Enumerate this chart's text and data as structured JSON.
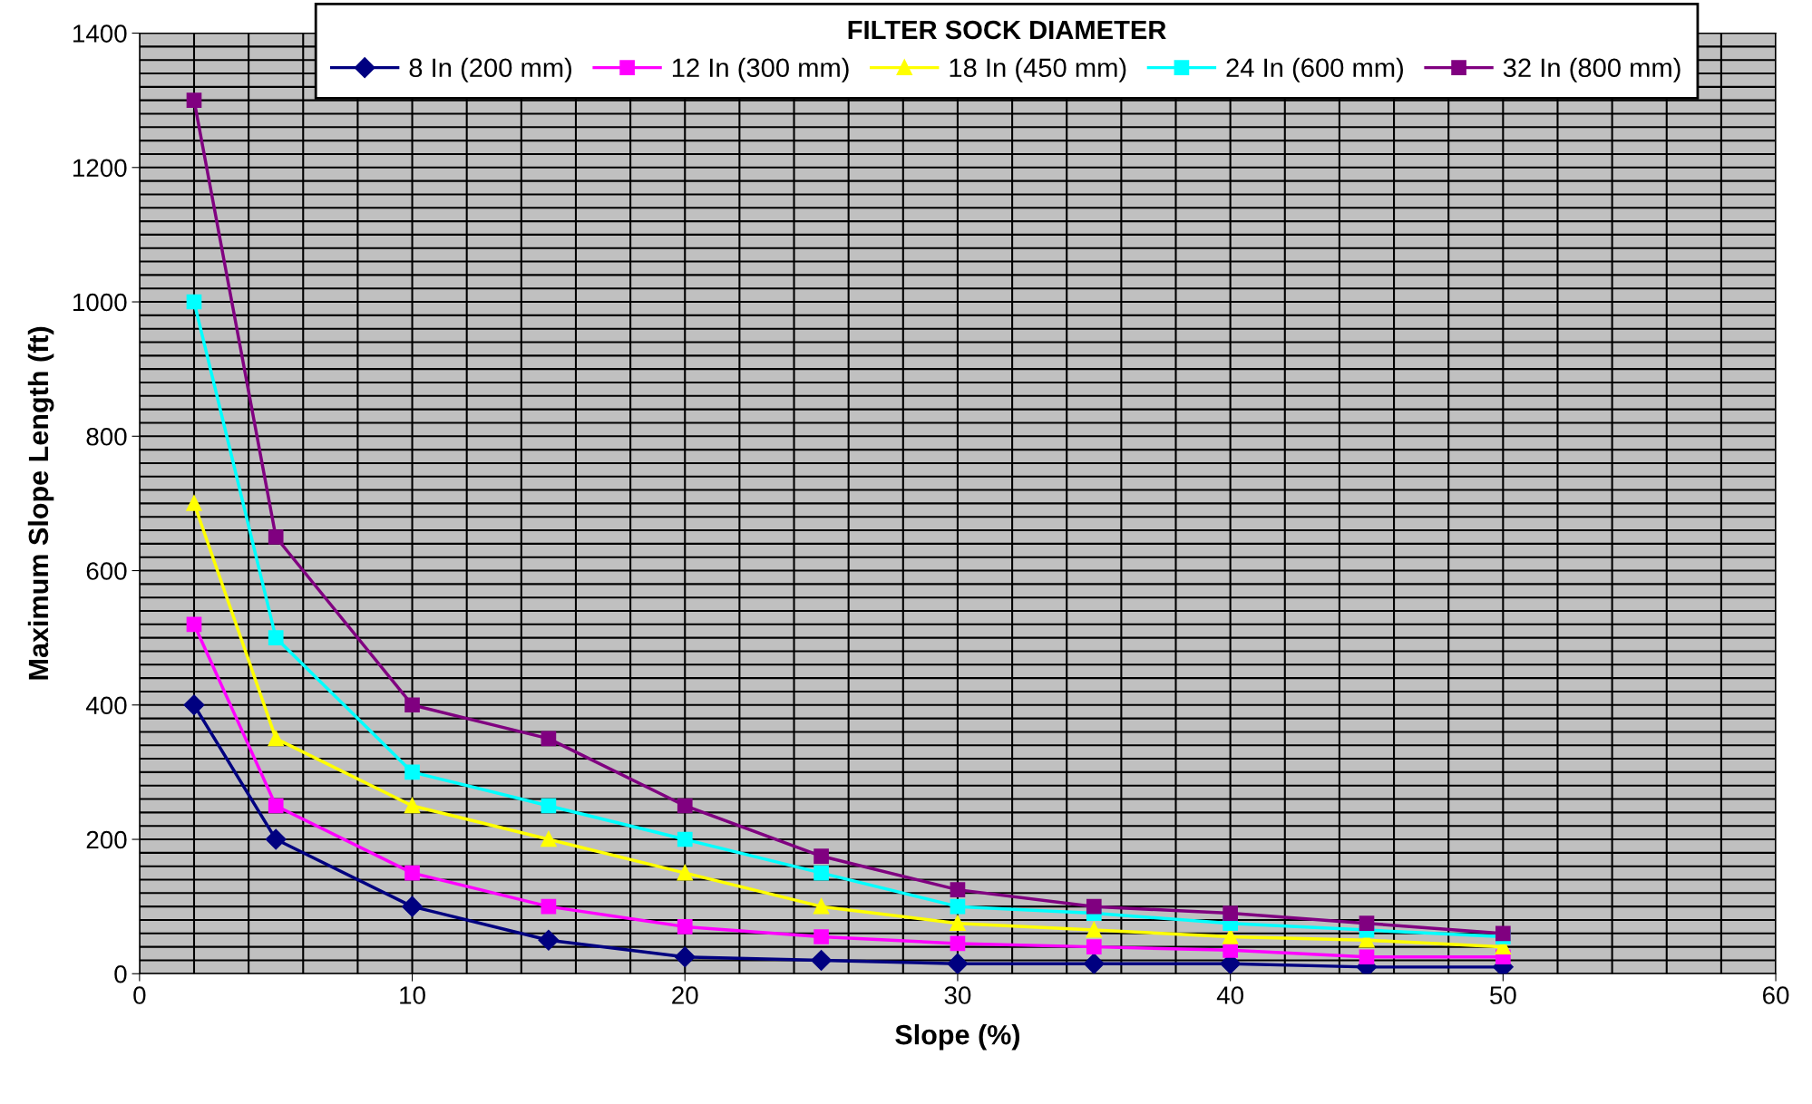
{
  "chart_data": {
    "type": "line",
    "legend_title": "FILTER SOCK DIAMETER",
    "xlabel": "Slope (%)",
    "ylabel": "Maximum Slope Length (ft)",
    "x": [
      2,
      5,
      10,
      15,
      20,
      25,
      30,
      35,
      40,
      45,
      50
    ],
    "series": [
      {
        "name": "8 In (200 mm)",
        "color": "#000080",
        "marker": "diamond",
        "values": [
          400,
          200,
          100,
          50,
          25,
          20,
          15,
          15,
          15,
          10,
          10
        ]
      },
      {
        "name": "12 In (300 mm)",
        "color": "#ff00ff",
        "marker": "square",
        "values": [
          520,
          250,
          150,
          100,
          70,
          55,
          45,
          40,
          35,
          25,
          25
        ]
      },
      {
        "name": "18 In (450 mm)",
        "color": "#ffff00",
        "marker": "triangle",
        "values": [
          700,
          350,
          250,
          200,
          150,
          100,
          75,
          65,
          55,
          50,
          40
        ]
      },
      {
        "name": "24 In (600 mm)",
        "color": "#00ffff",
        "marker": "square",
        "values": [
          1000,
          500,
          300,
          250,
          200,
          150,
          100,
          90,
          75,
          65,
          55
        ]
      },
      {
        "name": "32 In (800 mm)",
        "color": "#800080",
        "marker": "square",
        "values": [
          1300,
          650,
          400,
          350,
          250,
          175,
          125,
          100,
          90,
          75,
          60
        ]
      }
    ],
    "xlim": [
      0,
      60
    ],
    "ylim": [
      0,
      1400
    ],
    "xticks": [
      0,
      {
        "value": 2,
        "label": null
      },
      {
        "value": 4,
        "label": null
      },
      {
        "value": 6,
        "label": null
      },
      {
        "value": 8,
        "label": null
      },
      10,
      {
        "value": 12,
        "label": null
      },
      {
        "value": 14,
        "label": null
      },
      {
        "value": 16,
        "label": null
      },
      {
        "value": 18,
        "label": null
      },
      20,
      {
        "value": 22,
        "label": null
      },
      {
        "value": 24,
        "label": null
      },
      {
        "value": 26,
        "label": null
      },
      {
        "value": 28,
        "label": null
      },
      30,
      {
        "value": 32,
        "label": null
      },
      {
        "value": 34,
        "label": null
      },
      {
        "value": 36,
        "label": null
      },
      {
        "value": 38,
        "label": null
      },
      40,
      {
        "value": 42,
        "label": null
      },
      {
        "value": 44,
        "label": null
      },
      {
        "value": 46,
        "label": null
      },
      {
        "value": 48,
        "label": null
      },
      50,
      {
        "value": 52,
        "label": null
      },
      {
        "value": 54,
        "label": null
      },
      {
        "value": 56,
        "label": null
      },
      {
        "value": 58,
        "label": null
      },
      60
    ],
    "yticks": [
      0,
      {
        "value": 20,
        "label": null
      },
      {
        "value": 40,
        "label": null
      },
      {
        "value": 60,
        "label": null
      },
      {
        "value": 80,
        "label": null
      },
      {
        "value": 100,
        "label": null
      },
      {
        "value": 120,
        "label": null
      },
      {
        "value": 140,
        "label": null
      },
      {
        "value": 160,
        "label": null
      },
      {
        "value": 180,
        "label": null
      },
      200,
      {
        "value": 220,
        "label": null
      },
      {
        "value": 240,
        "label": null
      },
      {
        "value": 260,
        "label": null
      },
      {
        "value": 280,
        "label": null
      },
      {
        "value": 300,
        "label": null
      },
      {
        "value": 320,
        "label": null
      },
      {
        "value": 340,
        "label": null
      },
      {
        "value": 360,
        "label": null
      },
      {
        "value": 380,
        "label": null
      },
      400,
      {
        "value": 420,
        "label": null
      },
      {
        "value": 440,
        "label": null
      },
      {
        "value": 460,
        "label": null
      },
      {
        "value": 480,
        "label": null
      },
      {
        "value": 500,
        "label": null
      },
      {
        "value": 520,
        "label": null
      },
      {
        "value": 540,
        "label": null
      },
      {
        "value": 560,
        "label": null
      },
      {
        "value": 580,
        "label": null
      },
      600,
      {
        "value": 620,
        "label": null
      },
      {
        "value": 640,
        "label": null
      },
      {
        "value": 660,
        "label": null
      },
      {
        "value": 680,
        "label": null
      },
      {
        "value": 700,
        "label": null
      },
      {
        "value": 720,
        "label": null
      },
      {
        "value": 740,
        "label": null
      },
      {
        "value": 760,
        "label": null
      },
      {
        "value": 780,
        "label": null
      },
      800,
      {
        "value": 820,
        "label": null
      },
      {
        "value": 840,
        "label": null
      },
      {
        "value": 860,
        "label": null
      },
      {
        "value": 880,
        "label": null
      },
      {
        "value": 900,
        "label": null
      },
      {
        "value": 920,
        "label": null
      },
      {
        "value": 940,
        "label": null
      },
      {
        "value": 960,
        "label": null
      },
      {
        "value": 980,
        "label": null
      },
      1000,
      {
        "value": 1020,
        "label": null
      },
      {
        "value": 1040,
        "label": null
      },
      {
        "value": 1060,
        "label": null
      },
      {
        "value": 1080,
        "label": null
      },
      {
        "value": 1100,
        "label": null
      },
      {
        "value": 1120,
        "label": null
      },
      {
        "value": 1140,
        "label": null
      },
      {
        "value": 1160,
        "label": null
      },
      {
        "value": 1180,
        "label": null
      },
      1200,
      {
        "value": 1220,
        "label": null
      },
      {
        "value": 1240,
        "label": null
      },
      {
        "value": 1260,
        "label": null
      },
      {
        "value": 1280,
        "label": null
      },
      {
        "value": 1300,
        "label": null
      },
      {
        "value": 1320,
        "label": null
      },
      {
        "value": 1340,
        "label": null
      },
      {
        "value": 1360,
        "label": null
      },
      {
        "value": 1380,
        "label": null
      },
      1400
    ],
    "grid": true,
    "legend": "top",
    "line_style": "solid"
  }
}
